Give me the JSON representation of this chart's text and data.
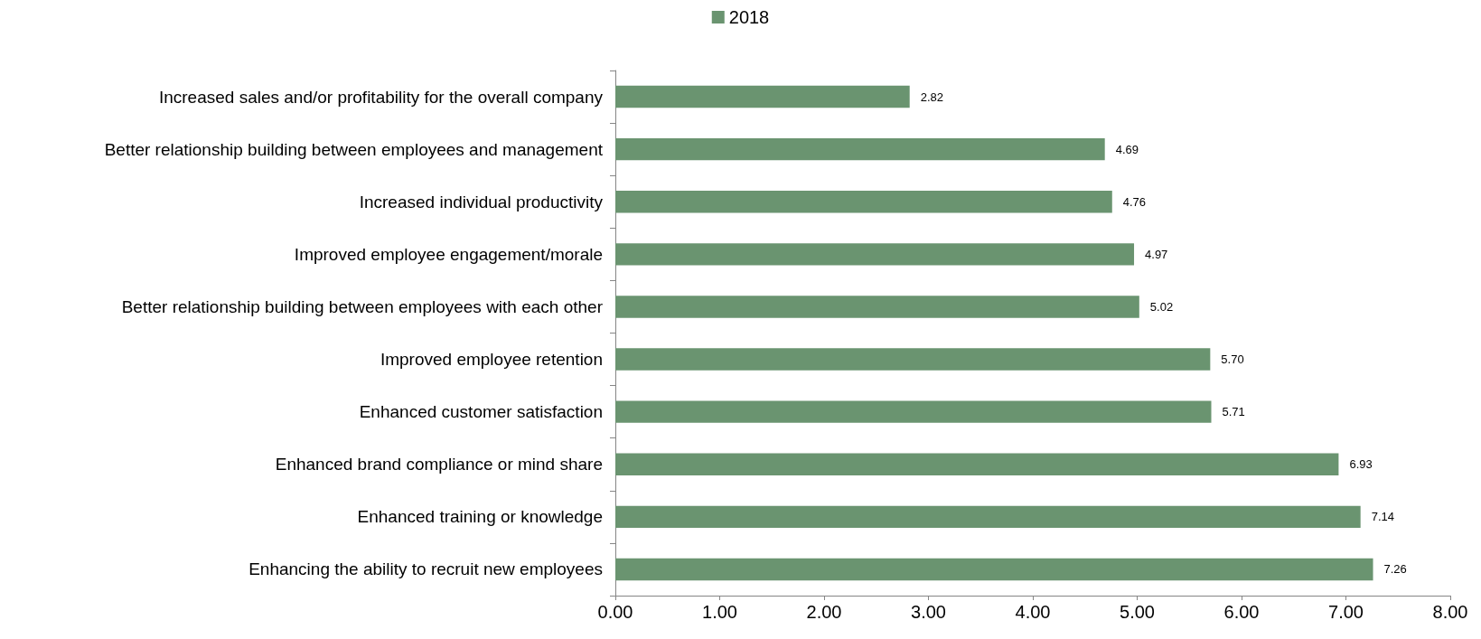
{
  "chart_data": {
    "type": "bar",
    "orientation": "horizontal",
    "categories": [
      "Increased sales and/or profitability for the overall company",
      "Better relationship building between employees and management",
      "Increased individual productivity",
      "Improved employee engagement/morale",
      "Better relationship building between employees with each other",
      "Improved employee retention",
      "Enhanced customer satisfaction",
      "Enhanced brand compliance or mind share",
      "Enhanced training or knowledge",
      "Enhancing the ability to recruit new employees"
    ],
    "series": [
      {
        "name": "2018",
        "color": "#6a9470",
        "values": [
          2.82,
          4.69,
          4.76,
          4.97,
          5.02,
          5.7,
          5.71,
          6.93,
          7.14,
          7.26
        ],
        "value_labels": [
          "2.82",
          "4.69",
          "4.76",
          "4.97",
          "5.02",
          "5.70",
          "5.71",
          "6.93",
          "7.14",
          "7.26"
        ]
      }
    ],
    "xlim": [
      0,
      8
    ],
    "xticks": [
      {
        "value": 0,
        "label": "0.00"
      },
      {
        "value": 1,
        "label": "1.00"
      },
      {
        "value": 2,
        "label": "2.00"
      },
      {
        "value": 3,
        "label": "3.00"
      },
      {
        "value": 4,
        "label": "4.00"
      },
      {
        "value": 5,
        "label": "5.00"
      },
      {
        "value": 6,
        "label": "6.00"
      },
      {
        "value": 7,
        "label": "7.00"
      },
      {
        "value": 8,
        "label": "8.00"
      }
    ],
    "grid": false,
    "legend": "top"
  }
}
